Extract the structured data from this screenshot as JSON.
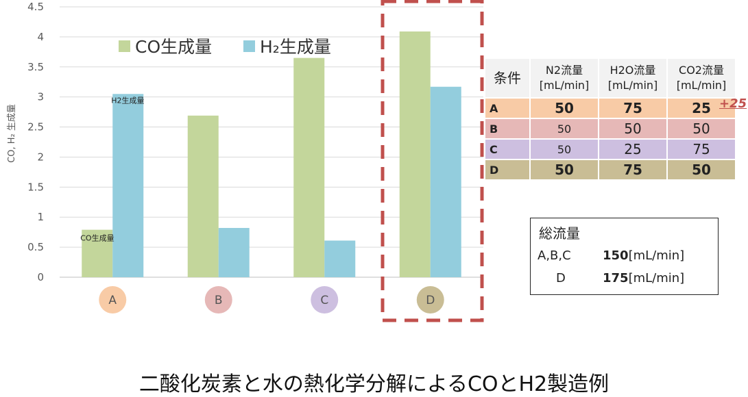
{
  "chart_data": {
    "type": "bar",
    "categories": [
      "A",
      "B",
      "C",
      "D"
    ],
    "series": [
      {
        "name": "CO生成量",
        "values": [
          0.79,
          2.69,
          3.65,
          4.09
        ],
        "color": "#c3d69b"
      },
      {
        "name": "H₂生成量",
        "values": [
          3.05,
          0.82,
          0.61,
          3.17
        ],
        "color": "#93cddd"
      }
    ],
    "category_colors": [
      "#f8cba6",
      "#e6b8b7",
      "#cdbfe0",
      "#c9bd95"
    ],
    "ylabel": "CO, H₂ 生成量",
    "ylim": [
      0,
      4.5
    ],
    "yticks": [
      "0",
      "0.5",
      "1",
      "1.5",
      "2",
      "2.5",
      "3",
      "3.5",
      "4",
      "4.5"
    ],
    "grid": true,
    "legend_position": "top",
    "bar_annotations": {
      "co_a": "CO生成量",
      "h2_a": "H2生成量"
    },
    "highlight": {
      "category": "D",
      "color": "#c0504d",
      "style": "dashed"
    }
  },
  "table": {
    "corner": "条件",
    "headers": [
      {
        "name": "N2流量",
        "unit": "[mL/min]"
      },
      {
        "name": "H2O流量",
        "unit": "[mL/min]"
      },
      {
        "name": "CO2流量",
        "unit": "[mL/min]"
      }
    ],
    "rows": [
      {
        "label": "A",
        "n2": "50",
        "h2o": "75",
        "co2": "25"
      },
      {
        "label": "B",
        "n2": "50",
        "h2o": "50",
        "co2": "50"
      },
      {
        "label": "C",
        "n2": "50",
        "h2o": "25",
        "co2": "75"
      },
      {
        "label": "D",
        "n2": "50",
        "h2o": "75",
        "co2": "50"
      }
    ],
    "note": "+25",
    "arrow_color": "#c0504d"
  },
  "total": {
    "title": "総流量",
    "rows": [
      {
        "label": "A,B,C",
        "value": "150",
        "unit": "[mL/min]"
      },
      {
        "label": "D",
        "value": "175",
        "unit": "[mL/min]"
      }
    ]
  },
  "caption": "二酸化炭素と水の熱化学分解によるCOとH2製造例"
}
